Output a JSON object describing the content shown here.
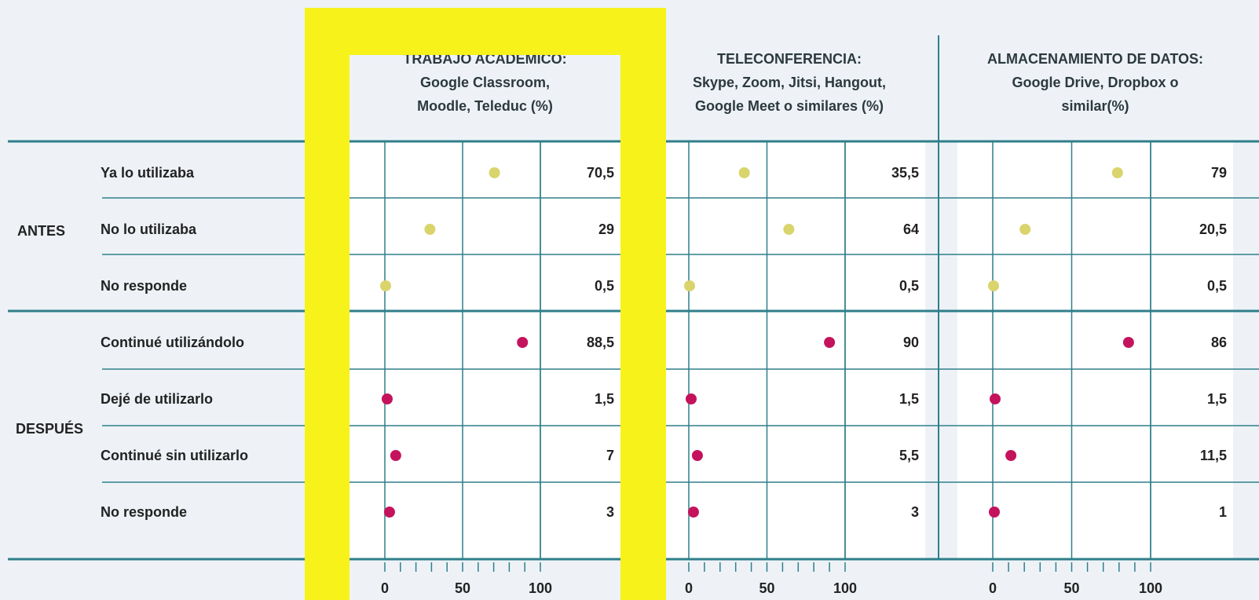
{
  "rows": {
    "groups": [
      {
        "label": "ANTES",
        "items": [
          "Ya lo utilizaba",
          "No lo utilizaba",
          "No responde"
        ]
      },
      {
        "label": "DESPUÉS",
        "items": [
          "Continué utilizándolo",
          "Dejé de utilizarlo",
          "Continué sin utilizarlo",
          "No responde"
        ]
      }
    ]
  },
  "chart_data": [
    {
      "type": "dot",
      "title": [
        "TRABAJO ACADÉMICO:",
        "Google Classroom,",
        "Moodle, Teleduc (%)"
      ],
      "values": [
        70.5,
        29,
        0.5,
        88.5,
        1.5,
        7,
        3
      ],
      "value_labels": [
        "70,5",
        "29",
        "0,5",
        "88,5",
        "1,5",
        "7",
        "3"
      ],
      "colors": [
        "#d9d46c",
        "#d9d46c",
        "#d9d46c",
        "#c4135c",
        "#c4135c",
        "#c4135c",
        "#c4135c"
      ],
      "xlim": [
        0,
        100
      ],
      "xticks": [
        0,
        50,
        100
      ],
      "minor_xticks": [
        0,
        10,
        20,
        30,
        40,
        50,
        60,
        70,
        80,
        90,
        100
      ]
    },
    {
      "type": "dot",
      "title": [
        "TELECONFERENCIA:",
        "Skype, Zoom, Jitsi, Hangout,",
        "Google Meet o similares (%)"
      ],
      "values": [
        35.5,
        64,
        0.5,
        90,
        1.5,
        5.5,
        3
      ],
      "value_labels": [
        "35,5",
        "64",
        "0,5",
        "90",
        "1,5",
        "5,5",
        "3"
      ],
      "colors": [
        "#d9d46c",
        "#d9d46c",
        "#d9d46c",
        "#c4135c",
        "#c4135c",
        "#c4135c",
        "#c4135c"
      ],
      "xlim": [
        0,
        100
      ],
      "xticks": [
        0,
        50,
        100
      ],
      "minor_xticks": [
        0,
        10,
        20,
        30,
        40,
        50,
        60,
        70,
        80,
        90,
        100
      ]
    },
    {
      "type": "dot",
      "title": [
        "ALMACENAMIENTO DE DATOS:",
        "Google Drive, Dropbox o",
        "similar(%)"
      ],
      "values": [
        79,
        20.5,
        0.5,
        86,
        1.5,
        11.5,
        1
      ],
      "value_labels": [
        "79",
        "20,5",
        "0,5",
        "86",
        "1,5",
        "11,5",
        "1"
      ],
      "colors": [
        "#d9d46c",
        "#d9d46c",
        "#d9d46c",
        "#c4135c",
        "#c4135c",
        "#c4135c",
        "#c4135c"
      ],
      "xlim": [
        0,
        100
      ],
      "xticks": [
        0,
        50,
        100
      ],
      "minor_xticks": [
        0,
        10,
        20,
        30,
        40,
        50,
        60,
        70,
        80,
        90,
        100
      ]
    }
  ]
}
